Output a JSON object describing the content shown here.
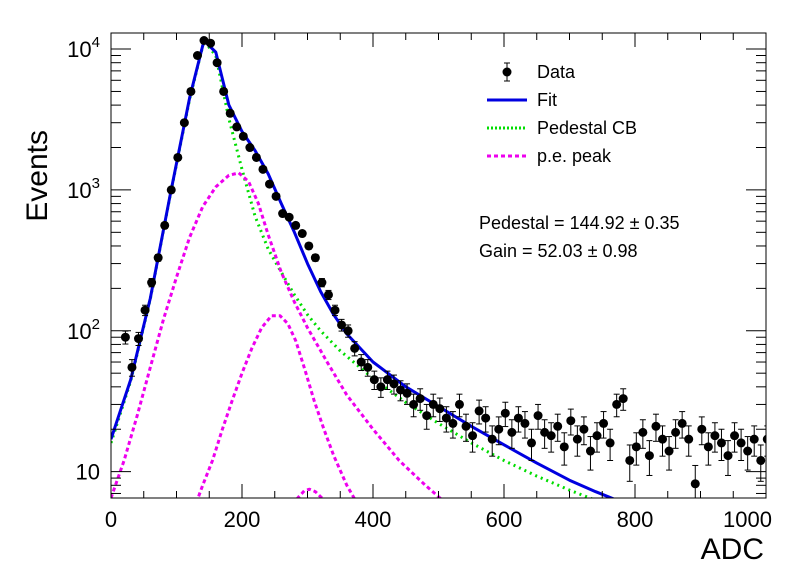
{
  "chart_data": {
    "type": "scatter",
    "title": "",
    "xlabel": "ADC",
    "ylabel": "Events",
    "xlim": [
      0,
      1000
    ],
    "ylim": [
      6.5,
      13000
    ],
    "yscale": "log",
    "grid": false,
    "legend_position": "top-right",
    "x_ticks": [
      0,
      200,
      400,
      600,
      800,
      1000
    ],
    "x_tick_labels": [
      "0",
      "200",
      "400",
      "600",
      "800",
      "1000"
    ],
    "y_major_ticks": [
      10,
      100,
      1000,
      10000
    ],
    "y_tick_labels": [
      {
        "base": "10",
        "exp": ""
      },
      {
        "base": "10",
        "exp": "2"
      },
      {
        "base": "10",
        "exp": "3"
      },
      {
        "base": "10",
        "exp": "4"
      }
    ],
    "legend": [
      {
        "label": "Data",
        "style": "marker",
        "color": "#000000"
      },
      {
        "label": "Fit",
        "style": "solid",
        "color": "#0000e0"
      },
      {
        "label": "Pedestal CB",
        "style": "dotted",
        "color": "#00dd00"
      },
      {
        "label": "p.e. peak",
        "style": "dashed",
        "color": "#ee00ee"
      }
    ],
    "annotations": [
      {
        "text": "Pedestal = 144.92 ± 0.35"
      },
      {
        "text": "Gain = 52.03 ± 0.98"
      }
    ],
    "data_points": [
      {
        "x": 22,
        "y": 90
      },
      {
        "x": 32,
        "y": 55
      },
      {
        "x": 42,
        "y": 88
      },
      {
        "x": 52,
        "y": 140
      },
      {
        "x": 62,
        "y": 220
      },
      {
        "x": 72,
        "y": 330
      },
      {
        "x": 82,
        "y": 560
      },
      {
        "x": 92,
        "y": 1000
      },
      {
        "x": 102,
        "y": 1700
      },
      {
        "x": 112,
        "y": 3000
      },
      {
        "x": 122,
        "y": 5000
      },
      {
        "x": 132,
        "y": 9000
      },
      {
        "x": 142,
        "y": 11500
      },
      {
        "x": 152,
        "y": 11000
      },
      {
        "x": 162,
        "y": 8000
      },
      {
        "x": 172,
        "y": 5000
      },
      {
        "x": 182,
        "y": 3500
      },
      {
        "x": 192,
        "y": 2800
      },
      {
        "x": 202,
        "y": 2400
      },
      {
        "x": 212,
        "y": 2000
      },
      {
        "x": 222,
        "y": 1700
      },
      {
        "x": 232,
        "y": 1400
      },
      {
        "x": 242,
        "y": 1100
      },
      {
        "x": 252,
        "y": 900
      },
      {
        "x": 262,
        "y": 680
      },
      {
        "x": 272,
        "y": 640
      },
      {
        "x": 282,
        "y": 560
      },
      {
        "x": 292,
        "y": 490
      },
      {
        "x": 302,
        "y": 400
      },
      {
        "x": 312,
        "y": 330
      },
      {
        "x": 322,
        "y": 220
      },
      {
        "x": 332,
        "y": 180
      },
      {
        "x": 342,
        "y": 140
      },
      {
        "x": 352,
        "y": 110
      },
      {
        "x": 362,
        "y": 100
      },
      {
        "x": 372,
        "y": 75
      },
      {
        "x": 382,
        "y": 60
      },
      {
        "x": 392,
        "y": 55
      },
      {
        "x": 402,
        "y": 45
      },
      {
        "x": 412,
        "y": 40
      },
      {
        "x": 422,
        "y": 45
      },
      {
        "x": 432,
        "y": 42
      },
      {
        "x": 442,
        "y": 38
      },
      {
        "x": 452,
        "y": 36
      },
      {
        "x": 462,
        "y": 30
      },
      {
        "x": 472,
        "y": 33
      },
      {
        "x": 482,
        "y": 25
      },
      {
        "x": 492,
        "y": 30
      },
      {
        "x": 502,
        "y": 28
      },
      {
        "x": 512,
        "y": 24
      },
      {
        "x": 522,
        "y": 22
      },
      {
        "x": 532,
        "y": 30
      },
      {
        "x": 542,
        "y": 21
      },
      {
        "x": 552,
        "y": 18
      },
      {
        "x": 562,
        "y": 27
      },
      {
        "x": 572,
        "y": 24
      },
      {
        "x": 582,
        "y": 17
      },
      {
        "x": 592,
        "y": 20
      },
      {
        "x": 602,
        "y": 26
      },
      {
        "x": 612,
        "y": 19
      },
      {
        "x": 622,
        "y": 24
      },
      {
        "x": 632,
        "y": 22
      },
      {
        "x": 642,
        "y": 16
      },
      {
        "x": 652,
        "y": 25
      },
      {
        "x": 662,
        "y": 19
      },
      {
        "x": 672,
        "y": 18
      },
      {
        "x": 682,
        "y": 21
      },
      {
        "x": 692,
        "y": 15
      },
      {
        "x": 702,
        "y": 23
      },
      {
        "x": 712,
        "y": 17
      },
      {
        "x": 722,
        "y": 20
      },
      {
        "x": 732,
        "y": 14
      },
      {
        "x": 742,
        "y": 18
      },
      {
        "x": 752,
        "y": 22
      },
      {
        "x": 762,
        "y": 16
      },
      {
        "x": 772,
        "y": 30
      },
      {
        "x": 782,
        "y": 33
      },
      {
        "x": 792,
        "y": 12
      },
      {
        "x": 802,
        "y": 15
      },
      {
        "x": 812,
        "y": 19
      },
      {
        "x": 822,
        "y": 13
      },
      {
        "x": 832,
        "y": 21
      },
      {
        "x": 842,
        "y": 17
      },
      {
        "x": 852,
        "y": 14
      },
      {
        "x": 862,
        "y": 19
      },
      {
        "x": 872,
        "y": 22
      },
      {
        "x": 882,
        "y": 17
      },
      {
        "x": 892,
        "y": 8.2
      },
      {
        "x": 902,
        "y": 20
      },
      {
        "x": 912,
        "y": 15
      },
      {
        "x": 922,
        "y": 18
      },
      {
        "x": 932,
        "y": 16
      },
      {
        "x": 942,
        "y": 13
      },
      {
        "x": 952,
        "y": 18
      },
      {
        "x": 962,
        "y": 16
      },
      {
        "x": 972,
        "y": 14
      },
      {
        "x": 982,
        "y": 17
      },
      {
        "x": 992,
        "y": 12
      },
      {
        "x": 1002,
        "y": 17
      }
    ],
    "series": [
      {
        "name": "Fit",
        "color": "#0000e0",
        "points": [
          [
            0,
            17
          ],
          [
            30,
            45
          ],
          [
            60,
            170
          ],
          [
            90,
            900
          ],
          [
            120,
            4500
          ],
          [
            142,
            11500
          ],
          [
            160,
            9500
          ],
          [
            180,
            4000
          ],
          [
            200,
            2600
          ],
          [
            220,
            1900
          ],
          [
            240,
            1300
          ],
          [
            260,
            800
          ],
          [
            280,
            500
          ],
          [
            300,
            300
          ],
          [
            320,
            190
          ],
          [
            340,
            130
          ],
          [
            360,
            95
          ],
          [
            400,
            60
          ],
          [
            450,
            40
          ],
          [
            500,
            29
          ],
          [
            550,
            21
          ],
          [
            600,
            15.5
          ],
          [
            650,
            11.5
          ],
          [
            700,
            8.7
          ],
          [
            740,
            7.2
          ],
          [
            775,
            6.2
          ]
        ]
      },
      {
        "name": "Pedestal CB",
        "color": "#00dd00",
        "points": [
          [
            0,
            16
          ],
          [
            30,
            44
          ],
          [
            60,
            168
          ],
          [
            90,
            890
          ],
          [
            120,
            4400
          ],
          [
            142,
            11400
          ],
          [
            160,
            9000
          ],
          [
            180,
            3200
          ],
          [
            200,
            1400
          ],
          [
            220,
            650
          ],
          [
            240,
            380
          ],
          [
            260,
            260
          ],
          [
            280,
            180
          ],
          [
            300,
            130
          ],
          [
            320,
            100
          ],
          [
            350,
            72
          ],
          [
            400,
            46
          ],
          [
            450,
            31
          ],
          [
            500,
            22
          ],
          [
            550,
            16
          ],
          [
            600,
            12
          ],
          [
            650,
            9.3
          ],
          [
            700,
            7.4
          ],
          [
            750,
            6.0
          ]
        ]
      },
      {
        "name": "1 p.e.",
        "color": "#ee00ee",
        "points": [
          [
            0,
            6.5
          ],
          [
            20,
            12
          ],
          [
            40,
            25
          ],
          [
            60,
            55
          ],
          [
            80,
            120
          ],
          [
            100,
            240
          ],
          [
            120,
            460
          ],
          [
            140,
            760
          ],
          [
            160,
            1050
          ],
          [
            180,
            1270
          ],
          [
            195,
            1320
          ],
          [
            210,
            1150
          ],
          [
            225,
            800
          ],
          [
            240,
            480
          ],
          [
            260,
            260
          ],
          [
            280,
            160
          ],
          [
            300,
            105
          ],
          [
            330,
            60
          ],
          [
            360,
            35
          ],
          [
            400,
            20
          ],
          [
            440,
            12
          ],
          [
            480,
            8
          ],
          [
            520,
            5.5
          ]
        ]
      },
      {
        "name": "2 p.e.",
        "color": "#ee00ee",
        "points": [
          [
            130,
            6.0
          ],
          [
            140,
            8
          ],
          [
            155,
            12
          ],
          [
            170,
            20
          ],
          [
            185,
            32
          ],
          [
            200,
            50
          ],
          [
            215,
            75
          ],
          [
            230,
            105
          ],
          [
            245,
            128
          ],
          [
            258,
            128
          ],
          [
            270,
            112
          ],
          [
            282,
            85
          ],
          [
            295,
            55
          ],
          [
            310,
            32
          ],
          [
            325,
            20
          ],
          [
            340,
            13
          ],
          [
            360,
            8
          ],
          [
            380,
            5.5
          ]
        ]
      },
      {
        "name": "3 p.e.",
        "color": "#ee00ee",
        "points": [
          [
            278,
            5.8
          ],
          [
            285,
            6.5
          ],
          [
            295,
            7.3
          ],
          [
            303,
            7.5
          ],
          [
            312,
            7.2
          ],
          [
            322,
            6.5
          ],
          [
            332,
            5.8
          ]
        ]
      }
    ]
  }
}
